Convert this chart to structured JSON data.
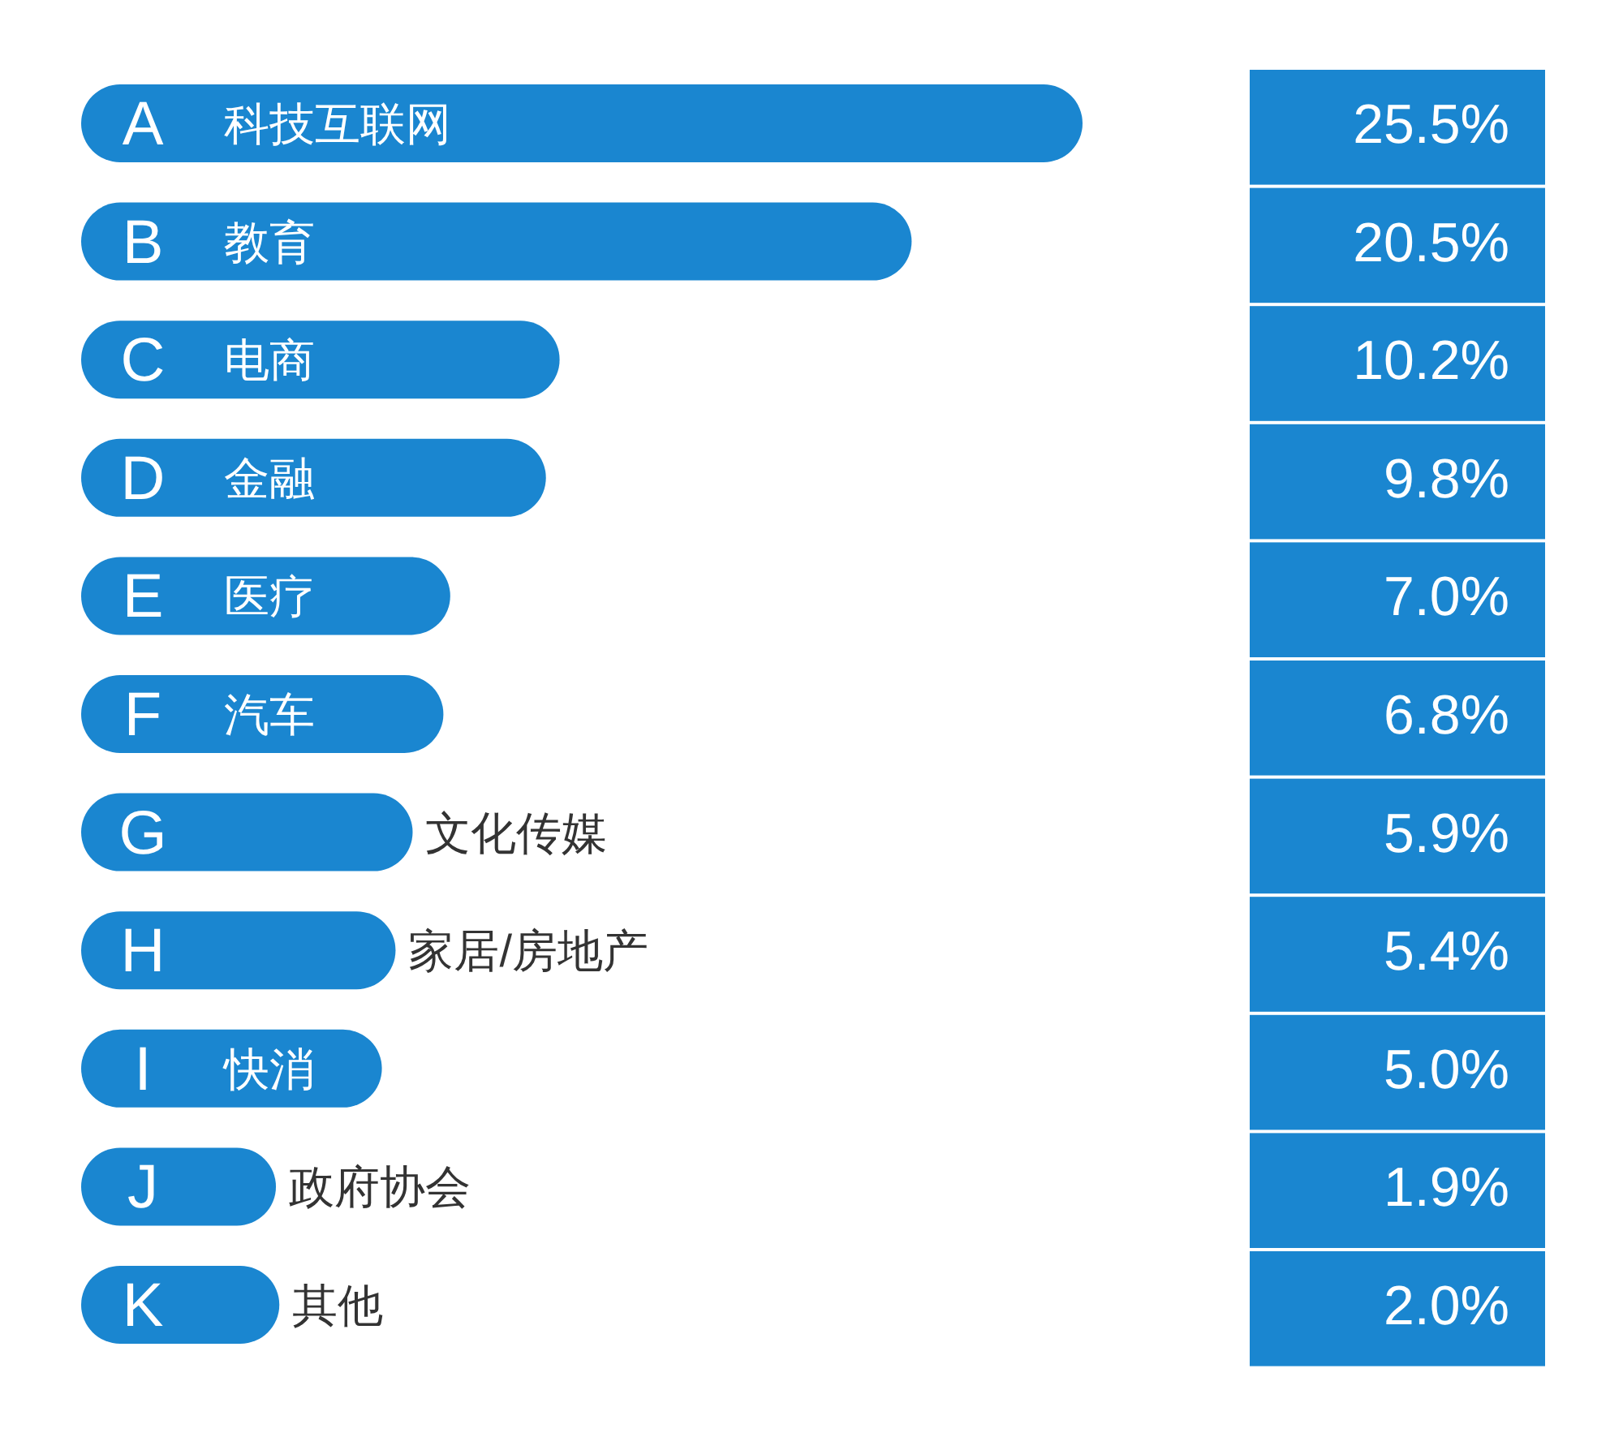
{
  "chart_data": {
    "type": "bar",
    "orientation": "horizontal",
    "color": "#1a86d0",
    "categories": [
      "A",
      "B",
      "C",
      "D",
      "E",
      "F",
      "G",
      "H",
      "I",
      "J",
      "K"
    ],
    "values": [
      25.5,
      20.5,
      10.2,
      9.8,
      7.0,
      6.8,
      5.9,
      5.4,
      5.0,
      1.9,
      2.0
    ],
    "value_labels": [
      "25.5%",
      "20.5%",
      "10.2%",
      "9.8%",
      "7.0%",
      "6.8%",
      "5.9%",
      "5.4%",
      "5.0%",
      "1.9%",
      "2.0%"
    ],
    "annotations": [
      "科技互联网",
      "教育",
      "电商",
      "金融",
      "医疗",
      "汽车",
      "文化传媒",
      "家居/房地产",
      "快消",
      "政府协会",
      "其他"
    ]
  }
}
